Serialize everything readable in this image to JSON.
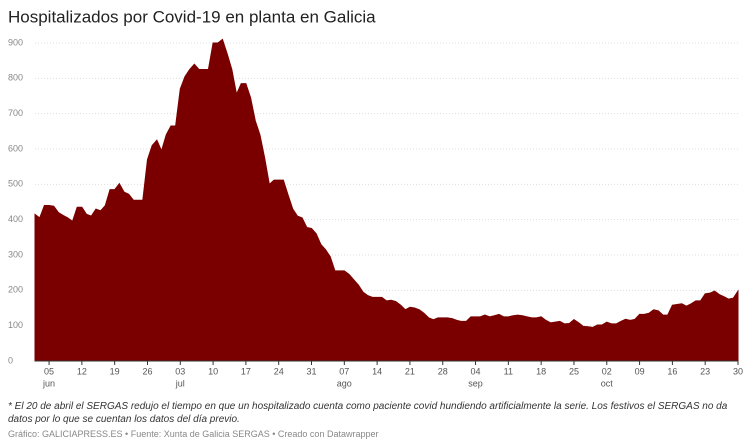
{
  "chart_data": {
    "type": "area",
    "title": "Hospitalizados por Covid-19 en planta en Galicia",
    "note": "* El 20 de abril el SERGAS redujo el tiempo en que un hospitalizado cuenta como paciente covid hundiendo artificialmente la serie. Los festivos el SERGAS no da datos por lo que se cuentan los datos del día previo.",
    "source": "Gráfico: GALICIAPRESS.ES • Fuente: Xunta de Galicia SERGAS • Creado con Datawrapper",
    "x": [
      "06-02",
      "06-03",
      "06-04",
      "06-05",
      "06-06",
      "06-07",
      "06-08",
      "06-09",
      "06-10",
      "06-11",
      "06-12",
      "06-13",
      "06-14",
      "06-15",
      "06-16",
      "06-17",
      "06-18",
      "06-19",
      "06-20",
      "06-21",
      "06-22",
      "06-23",
      "06-24",
      "06-25",
      "06-26",
      "06-27",
      "06-28",
      "06-29",
      "06-30",
      "07-01",
      "07-02",
      "07-03",
      "07-04",
      "07-05",
      "07-06",
      "07-07",
      "07-08",
      "07-09",
      "07-10",
      "07-11",
      "07-12",
      "07-13",
      "07-14",
      "07-15",
      "07-16",
      "07-17",
      "07-18",
      "07-19",
      "07-20",
      "07-21",
      "07-22",
      "07-23",
      "07-24",
      "07-25",
      "07-26",
      "07-27",
      "07-28",
      "07-29",
      "07-30",
      "07-31",
      "08-01",
      "08-02",
      "08-03",
      "08-04",
      "08-05",
      "08-06",
      "08-07",
      "08-08",
      "08-09",
      "08-10",
      "08-11",
      "08-12",
      "08-13",
      "08-14",
      "08-15",
      "08-16",
      "08-17",
      "08-18",
      "08-19",
      "08-20",
      "08-21",
      "08-22",
      "08-23",
      "08-24",
      "08-25",
      "08-26",
      "08-27",
      "08-28",
      "08-29",
      "08-30",
      "08-31",
      "09-01",
      "09-02",
      "09-03",
      "09-04",
      "09-05",
      "09-06",
      "09-07",
      "09-08",
      "09-09",
      "09-10",
      "09-11",
      "09-12",
      "09-13",
      "09-14",
      "09-15",
      "09-16",
      "09-17",
      "09-18",
      "09-19",
      "09-20",
      "09-21",
      "09-22",
      "09-23",
      "09-24",
      "09-25",
      "09-26",
      "09-27",
      "09-28",
      "09-29",
      "09-30",
      "10-01",
      "10-02",
      "10-03",
      "10-04",
      "10-05",
      "10-06",
      "10-07",
      "10-08",
      "10-09",
      "10-10",
      "10-11",
      "10-12",
      "10-13",
      "10-14",
      "10-15",
      "10-16",
      "10-17",
      "10-18",
      "10-19",
      "10-20",
      "10-21",
      "10-22",
      "10-23",
      "10-24",
      "10-25",
      "10-26",
      "10-27",
      "10-28",
      "10-29",
      "10-30"
    ],
    "series": [
      {
        "color": "#7a0000",
        "values": [
          415,
          405,
          440,
          440,
          438,
          420,
          412,
          405,
          395,
          435,
          435,
          415,
          410,
          430,
          425,
          440,
          485,
          485,
          502,
          478,
          472,
          455,
          455,
          455,
          570,
          610,
          625,
          595,
          640,
          665,
          665,
          770,
          805,
          825,
          840,
          825,
          825,
          825,
          900,
          900,
          910,
          870,
          825,
          755,
          785,
          785,
          745,
          680,
          640,
          575,
          500,
          512,
          512,
          512,
          470,
          430,
          410,
          405,
          378,
          375,
          360,
          330,
          315,
          295,
          255,
          255,
          255,
          245,
          230,
          215,
          195,
          185,
          180,
          180,
          180,
          170,
          172,
          168,
          158,
          145,
          152,
          150,
          145,
          135,
          122,
          117,
          122,
          122,
          122,
          120,
          115,
          112,
          112,
          125,
          125,
          125,
          130,
          125,
          128,
          132,
          125,
          125,
          128,
          130,
          128,
          125,
          122,
          122,
          125,
          115,
          108,
          110,
          112,
          105,
          106,
          117,
          108,
          98,
          97,
          95,
          102,
          102,
          110,
          105,
          105,
          112,
          118,
          115,
          118,
          132,
          132,
          135,
          145,
          142,
          130,
          130,
          158,
          160,
          162,
          155,
          162,
          170,
          170,
          190,
          192,
          198,
          188,
          182,
          175,
          178,
          198
        ]
      }
    ],
    "ylim": [
      0,
      900
    ],
    "yticks": [
      0,
      100,
      200,
      300,
      400,
      500,
      600,
      700,
      800,
      900
    ],
    "grid": true,
    "xticks": [
      {
        "value": "06-05",
        "label": "05"
      },
      {
        "value": "06-12",
        "label": "12"
      },
      {
        "value": "06-19",
        "label": "19"
      },
      {
        "value": "06-26",
        "label": "26"
      },
      {
        "value": "07-03",
        "label": "03"
      },
      {
        "value": "07-10",
        "label": "10"
      },
      {
        "value": "07-17",
        "label": "17"
      },
      {
        "value": "07-24",
        "label": "24"
      },
      {
        "value": "07-31",
        "label": "31"
      },
      {
        "value": "08-07",
        "label": "07"
      },
      {
        "value": "08-14",
        "label": "14"
      },
      {
        "value": "08-21",
        "label": "21"
      },
      {
        "value": "08-28",
        "label": "28"
      },
      {
        "value": "09-04",
        "label": "04"
      },
      {
        "value": "09-11",
        "label": "11"
      },
      {
        "value": "09-18",
        "label": "18"
      },
      {
        "value": "09-25",
        "label": "25"
      },
      {
        "value": "10-02",
        "label": "02"
      },
      {
        "value": "10-09",
        "label": "09"
      },
      {
        "value": "10-16",
        "label": "16"
      },
      {
        "value": "10-23",
        "label": "23"
      },
      {
        "value": "10-30",
        "label": "30"
      }
    ],
    "month_labels": [
      {
        "value": "06-05",
        "label": "jun"
      },
      {
        "value": "07-03",
        "label": "jul"
      },
      {
        "value": "08-07",
        "label": "ago"
      },
      {
        "value": "09-04",
        "label": "sep"
      },
      {
        "value": "10-02",
        "label": "oct"
      }
    ]
  }
}
